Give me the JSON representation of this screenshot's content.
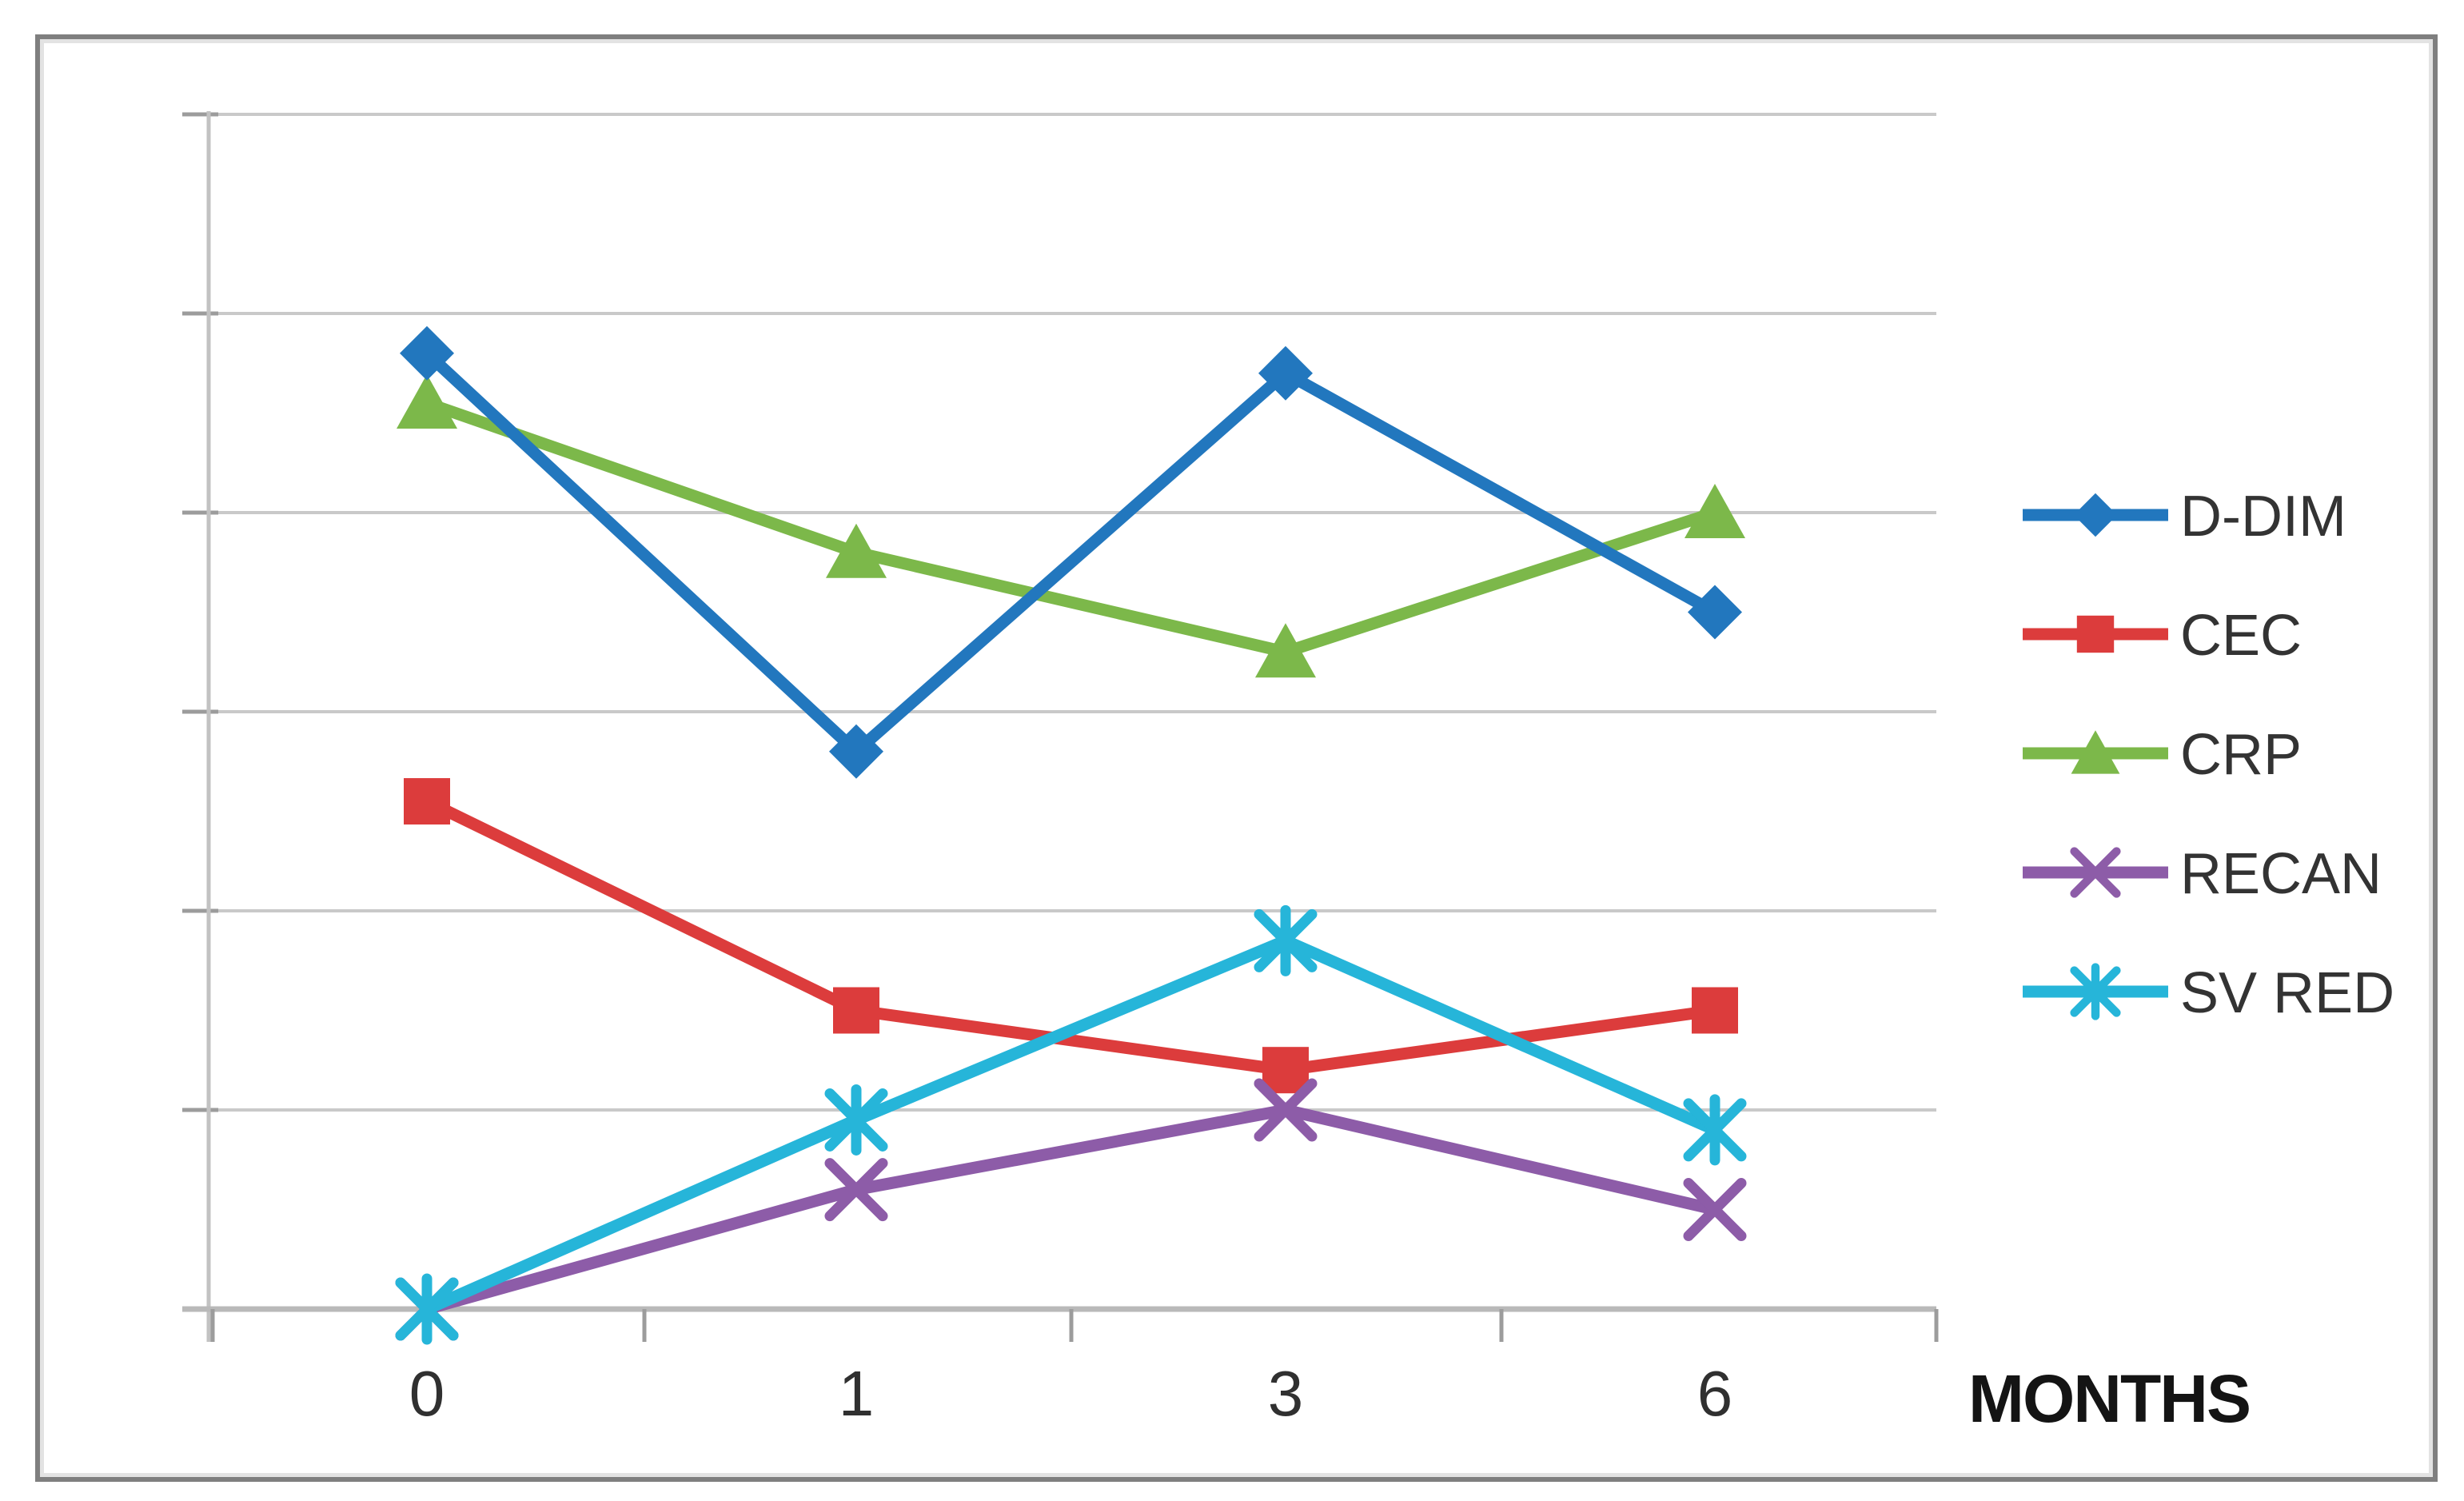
{
  "chart_data": {
    "type": "line",
    "title": "",
    "categories": [
      "0",
      "1",
      "3",
      "6"
    ],
    "xlabel": "MONTHS",
    "ylabel": "",
    "ylim": [
      0,
      6
    ],
    "gridline_step": 1,
    "grid": true,
    "y_tick_labels_visible": false,
    "legend_position": "right",
    "series": [
      {
        "name": "D-DIM",
        "marker": "diamond",
        "color": "#2277BE",
        "values": [
          4.8,
          2.8,
          4.7,
          3.5
        ]
      },
      {
        "name": "CEC",
        "marker": "square",
        "color": "#DC3C3C",
        "values": [
          2.55,
          1.5,
          1.2,
          1.5
        ]
      },
      {
        "name": "CRP",
        "marker": "triangle",
        "color": "#7CB84A",
        "values": [
          4.55,
          3.8,
          3.3,
          4.0
        ]
      },
      {
        "name": "RECAN",
        "marker": "x",
        "color": "#8D5CA8",
        "values": [
          0,
          0.6,
          1.0,
          0.5
        ]
      },
      {
        "name": "SV RED",
        "marker": "asterisk",
        "color": "#26B5D9",
        "values": [
          0,
          0.95,
          1.85,
          0.9
        ]
      }
    ]
  },
  "colors": {
    "gridline": "#C9C9C9",
    "grid_stub": "#9C9C9C",
    "x_axis_line": "#B9B9B9",
    "y_axis_line": "#C2C2C2",
    "tick": "#9C9C9C",
    "tick_label_text": "#303030",
    "legend_text": "#333333",
    "axis_title_text": "#141414",
    "frame_border": "#7F7F7F",
    "frame_inner_highlight": "#E3E3E3",
    "background": "#FFFFFF"
  }
}
